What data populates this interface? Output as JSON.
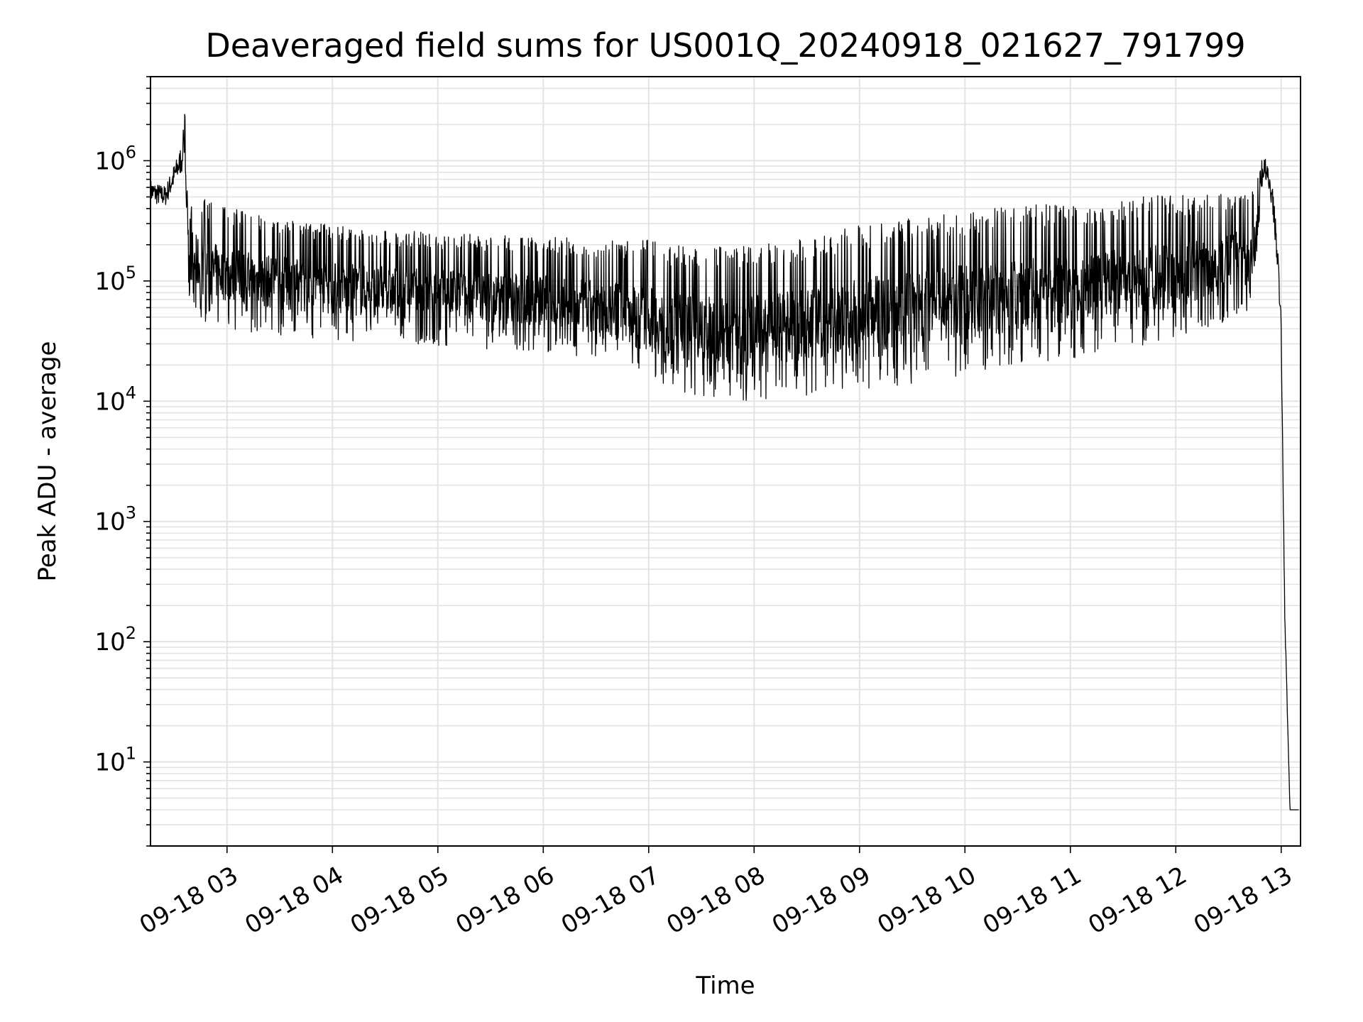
{
  "chart_data": {
    "type": "line",
    "title": "Deaveraged field sums for US001Q_20240918_021627_791799",
    "xlabel": "Time",
    "ylabel": "Peak ADU - average",
    "yscale": "log",
    "ylim": [
      2,
      5000000
    ],
    "xlim": [
      "2024-09-18 02:16:27",
      "2024-09-18 13:11:00"
    ],
    "grid": true,
    "x_tick_labels": [
      "09-18 03",
      "09-18 04",
      "09-18 05",
      "09-18 06",
      "09-18 07",
      "09-18 08",
      "09-18 09",
      "09-18 10",
      "09-18 11",
      "09-18 12",
      "09-18 13"
    ],
    "y_tick_labels": [
      {
        "base": "10",
        "exp": "1",
        "value": 10
      },
      {
        "base": "10",
        "exp": "2",
        "value": 100
      },
      {
        "base": "10",
        "exp": "3",
        "value": 1000
      },
      {
        "base": "10",
        "exp": "4",
        "value": 10000
      },
      {
        "base": "10",
        "exp": "5",
        "value": 100000
      },
      {
        "base": "10",
        "exp": "6",
        "value": 1000000
      }
    ],
    "series": [
      {
        "color": "#000000",
        "x": [
          "2024-09-18 02:16:30",
          "2024-09-18 02:20",
          "2024-09-18 02:25",
          "2024-09-18 02:30",
          "2024-09-18 02:33",
          "2024-09-18 02:36",
          "2024-09-18 02:38",
          "2024-09-18 02:40",
          "2024-09-18 02:43",
          "2024-09-18 02:45",
          "2024-09-18 02:50",
          "2024-09-18 03:00",
          "2024-09-18 03:10",
          "2024-09-18 03:20",
          "2024-09-18 03:30",
          "2024-09-18 03:40",
          "2024-09-18 03:50",
          "2024-09-18 04:00",
          "2024-09-18 04:15",
          "2024-09-18 04:30",
          "2024-09-18 04:45",
          "2024-09-18 05:00",
          "2024-09-18 05:15",
          "2024-09-18 05:30",
          "2024-09-18 05:45",
          "2024-09-18 06:00",
          "2024-09-18 06:15",
          "2024-09-18 06:30",
          "2024-09-18 06:45",
          "2024-09-18 07:00",
          "2024-09-18 07:15",
          "2024-09-18 07:30",
          "2024-09-18 07:45",
          "2024-09-18 08:00",
          "2024-09-18 08:10",
          "2024-09-18 08:20",
          "2024-09-18 08:35",
          "2024-09-18 08:50",
          "2024-09-18 09:00",
          "2024-09-18 09:15",
          "2024-09-18 09:30",
          "2024-09-18 09:45",
          "2024-09-18 10:00",
          "2024-09-18 10:15",
          "2024-09-18 10:30",
          "2024-09-18 10:45",
          "2024-09-18 11:00",
          "2024-09-18 11:15",
          "2024-09-18 11:30",
          "2024-09-18 11:45",
          "2024-09-18 12:00",
          "2024-09-18 12:15",
          "2024-09-18 12:30",
          "2024-09-18 12:40",
          "2024-09-18 12:45",
          "2024-09-18 12:50",
          "2024-09-18 12:55",
          "2024-09-18 12:58",
          "2024-09-18 13:00",
          "2024-09-18 13:02",
          "2024-09-18 13:05",
          "2024-09-18 13:10"
        ],
        "y_upper": [
          700000,
          650000,
          620000,
          950000,
          1200000,
          2600000,
          300000,
          550000,
          500000,
          500000,
          450000,
          420000,
          380000,
          350000,
          330000,
          320000,
          300000,
          300000,
          280000,
          270000,
          260000,
          250000,
          250000,
          240000,
          240000,
          230000,
          230000,
          220000,
          220000,
          220000,
          200000,
          190000,
          200000,
          200000,
          210000,
          220000,
          240000,
          270000,
          290000,
          320000,
          340000,
          360000,
          380000,
          400000,
          420000,
          440000,
          450000,
          470000,
          490000,
          510000,
          520000,
          540000,
          560000,
          580000,
          600000,
          1200000,
          650000,
          200000,
          50000,
          200,
          4,
          4
        ],
        "y_lower": [
          450000,
          430000,
          420000,
          600000,
          750000,
          800000,
          75000,
          60000,
          50000,
          45000,
          42000,
          40000,
          38000,
          36000,
          35000,
          34000,
          33000,
          32000,
          31000,
          30000,
          30000,
          29000,
          28000,
          27000,
          26000,
          25000,
          22000,
          20000,
          17000,
          14000,
          12000,
          11000,
          10500,
          10000,
          10000,
          10500,
          11000,
          11500,
          12000,
          13000,
          14000,
          15000,
          16000,
          17000,
          19000,
          20000,
          22000,
          24000,
          26000,
          28000,
          32000,
          38000,
          45000,
          55000,
          70000,
          700000,
          400000,
          120000,
          30000,
          150,
          4,
          4
        ]
      }
    ]
  }
}
